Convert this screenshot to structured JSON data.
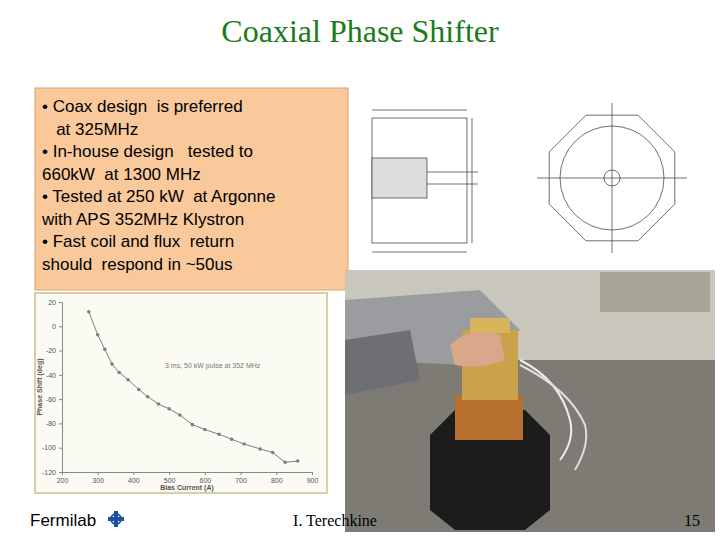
{
  "slide": {
    "title": "Coaxial Phase Shifter",
    "bullets": [
      [
        "• Coax design  is preferred",
        "   at 325MHz"
      ],
      [
        "• In-house design   tested to",
        "660kW  at 1300 MHz"
      ],
      [
        "• Tested at 250 kW  at Argonne",
        "with APS 352MHz Klystron"
      ],
      [
        "• Fast coil and flux  return",
        "should  respond in ~50us"
      ]
    ],
    "footer": {
      "organization": "Fermilab",
      "author": "I. Terechkine",
      "page": "15"
    }
  },
  "chart_data": {
    "type": "line",
    "annotation": "3 ms, 50 kW pulse at 352 MHz",
    "x_label": "Bias Current (A)",
    "y_label": "Phase Shift (deg)",
    "x": [
      275,
      300,
      320,
      340,
      360,
      385,
      415,
      440,
      470,
      500,
      530,
      565,
      600,
      640,
      675,
      710,
      755,
      790,
      825,
      860
    ],
    "values": [
      12,
      -7,
      -19,
      -31,
      -38,
      -44,
      -52,
      -58,
      -64,
      -68,
      -73,
      -81,
      -85,
      -89,
      -93,
      -97,
      -101,
      -104,
      -112,
      -111
    ],
    "xlim": [
      200,
      900
    ],
    "xticks": [
      200,
      300,
      400,
      500,
      600,
      700,
      800,
      900
    ],
    "ylim": [
      -120,
      20
    ],
    "yticks": [
      -120,
      -100,
      -80,
      -60,
      -40,
      -20,
      0,
      20
    ],
    "color": "#7f7f7f",
    "marker": "circle",
    "grid": false
  }
}
